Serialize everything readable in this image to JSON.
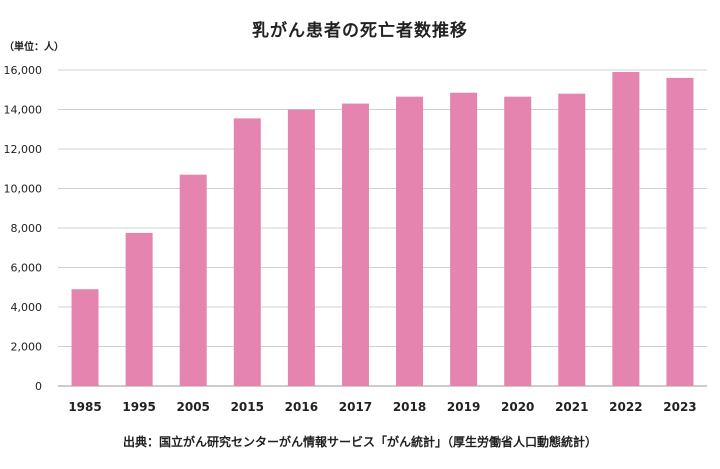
{
  "chart_data": {
    "type": "bar",
    "title": "乳がん患者の死亡者数推移",
    "unit_label": "（単位：人）",
    "categories": [
      "1985",
      "1995",
      "2005",
      "2015",
      "2016",
      "2017",
      "2018",
      "2019",
      "2020",
      "2021",
      "2022",
      "2023"
    ],
    "values": [
      4900,
      7750,
      10700,
      13550,
      14000,
      14300,
      14650,
      14850,
      14650,
      14800,
      15900,
      15600
    ],
    "ylim": [
      0,
      16000
    ],
    "yticks": [
      0,
      2000,
      4000,
      6000,
      8000,
      10000,
      12000,
      14000,
      16000
    ],
    "ytick_labels": [
      "0",
      "2,000",
      "4,000",
      "6,000",
      "8,000",
      "10,000",
      "12,000",
      "14,000",
      "16,000"
    ],
    "bar_color": "#e584ae",
    "grid": true,
    "source": "出典：国立がん研究センターがん情報サービス「がん統計」（厚生労働省人口動態統計）"
  }
}
